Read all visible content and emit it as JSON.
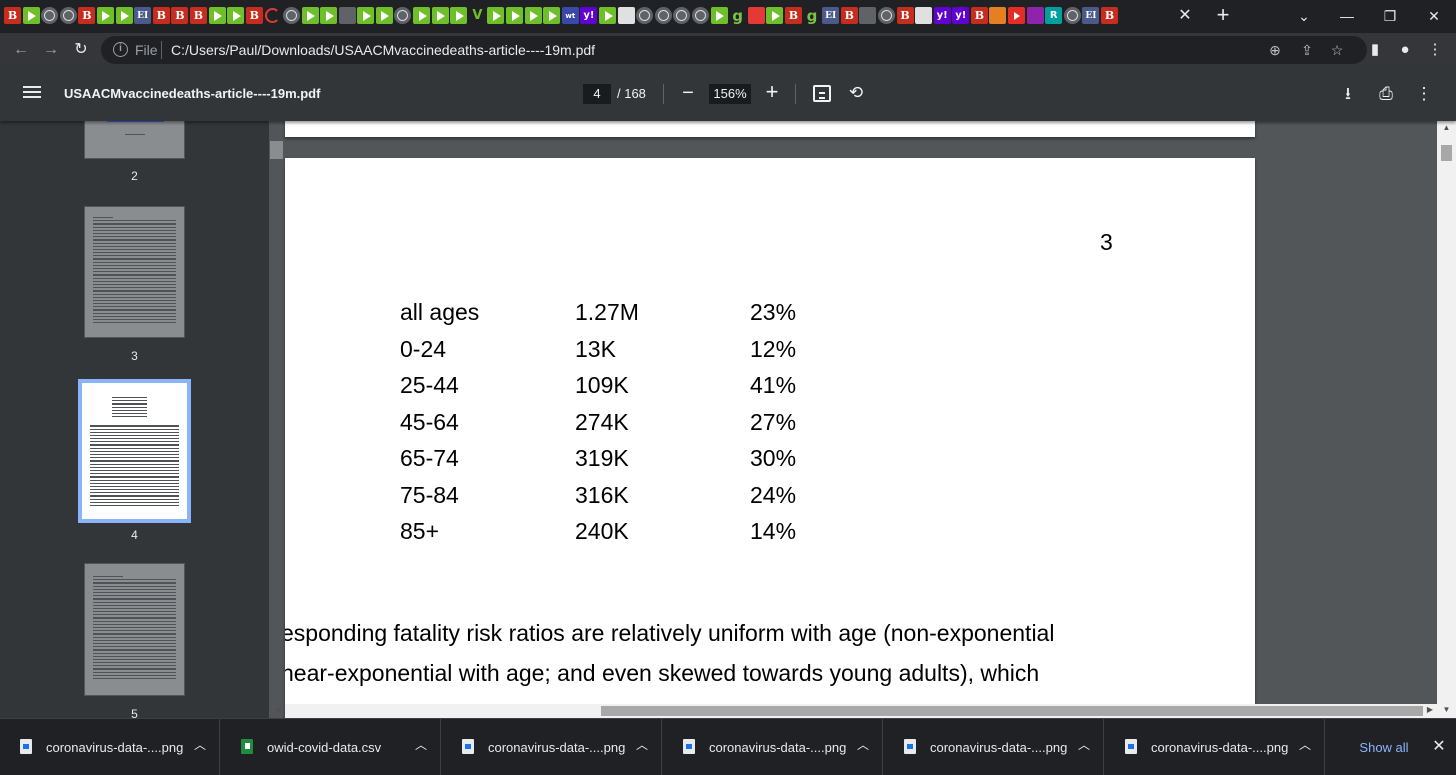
{
  "browser": {
    "tab_favicons": [
      "B",
      "play",
      "globe",
      "globe",
      "B",
      "play",
      "play",
      "EI",
      "B",
      "B",
      "B",
      "play",
      "play",
      "B",
      "circle",
      "globe",
      "play",
      "play",
      "gray",
      "play",
      "play",
      "globe",
      "play",
      "play",
      "play",
      "v",
      "play",
      "play",
      "play",
      "play",
      "wt",
      "y",
      "play",
      "lt",
      "globe",
      "globe",
      "globe",
      "globe",
      "play",
      "g",
      "red",
      "play",
      "B",
      "g",
      "EI",
      "B",
      "gray",
      "globe",
      "B",
      "lt",
      "y",
      "y",
      "B",
      "org",
      "yt",
      "purp",
      "r",
      "globe",
      "EI",
      "B"
    ],
    "tab_close_icon": "close-icon",
    "new_tab_label": "+",
    "window_controls": [
      "chevron-down-icon",
      "minimize-icon",
      "restore-icon",
      "close-icon"
    ]
  },
  "address_bar": {
    "scheme": "File",
    "url": "C:/Users/Paul/Downloads/USAACMvaccinedeaths-article----19m.pdf"
  },
  "pdf_toolbar": {
    "title": "USAACMvaccinedeaths-article----19m.pdf",
    "page_current": "4",
    "page_total": "/ 168",
    "zoom": "156%",
    "zoom_out": "−",
    "zoom_in": "+"
  },
  "sidebar": {
    "thumbnails": [
      {
        "label": "2",
        "selected": false
      },
      {
        "label": "3",
        "selected": false
      },
      {
        "label": "4",
        "selected": true
      },
      {
        "label": "5",
        "selected": false
      }
    ]
  },
  "page": {
    "page_number": "3",
    "table": [
      {
        "age": "all ages",
        "deaths": "1.27M",
        "pct": "23%"
      },
      {
        "age": "0-24",
        "deaths": "13K",
        "pct": "12%"
      },
      {
        "age": "25-44",
        "deaths": "109K",
        "pct": "41%"
      },
      {
        "age": "45-64",
        "deaths": "274K",
        "pct": "27%"
      },
      {
        "age": "65-74",
        "deaths": "319K",
        "pct": "30%"
      },
      {
        "age": "75-84",
        "deaths": "316K",
        "pct": "24%"
      },
      {
        "age": "85+",
        "deaths": "240K",
        "pct": "14%"
      }
    ],
    "body_lines": [
      "esponding fatality risk ratios are relatively uniform with age (non-exponential",
      "near-exponential with age; and even skewed towards young adults), which"
    ]
  },
  "downloads": {
    "items": [
      {
        "name": "coronavirus-data-....png",
        "type": "png"
      },
      {
        "name": "owid-covid-data.csv",
        "type": "csv"
      },
      {
        "name": "coronavirus-data-....png",
        "type": "png"
      },
      {
        "name": "coronavirus-data-....png",
        "type": "png"
      },
      {
        "name": "coronavirus-data-....png",
        "type": "png"
      },
      {
        "name": "coronavirus-data-....png",
        "type": "png"
      }
    ],
    "show_all": "Show all"
  },
  "colors": {
    "accent": "#8ab4f8",
    "pdf_bg": "#525659",
    "toolbar": "#323639"
  }
}
